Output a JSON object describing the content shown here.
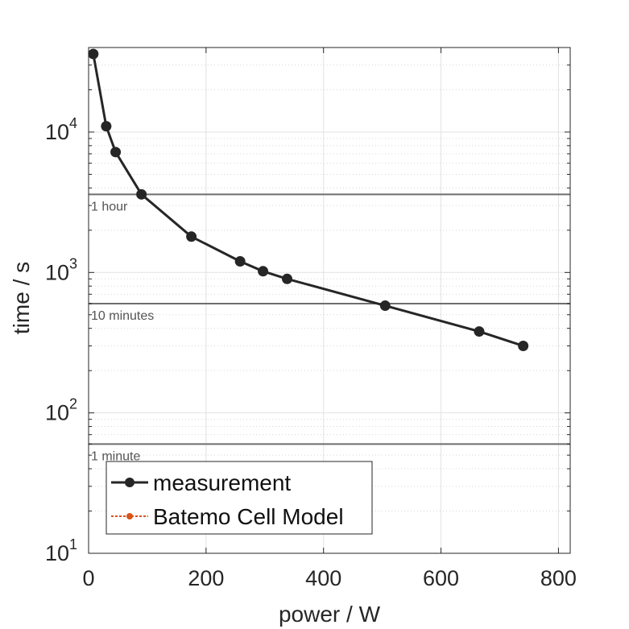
{
  "chart_data": {
    "type": "line",
    "xlabel": "power / W",
    "ylabel": "time / s",
    "xlim": [
      0,
      820
    ],
    "ylim": [
      10,
      40000
    ],
    "y_scale": "log",
    "x_ticks": [
      0,
      200,
      400,
      600,
      800
    ],
    "y_ticks": [
      {
        "value": 10,
        "base": "10",
        "exp": "1"
      },
      {
        "value": 100,
        "base": "10",
        "exp": "2"
      },
      {
        "value": 1000,
        "base": "10",
        "exp": "3"
      },
      {
        "value": 10000,
        "base": "10",
        "exp": "4"
      }
    ],
    "grid": true,
    "legend_position": "bottom-left",
    "series": [
      {
        "name": "measurement",
        "color": "#262626",
        "x": [
          8,
          30,
          46,
          90,
          175,
          258,
          297,
          338,
          505,
          665,
          740
        ],
        "y": [
          36000,
          11000,
          7200,
          3600,
          1800,
          1200,
          1020,
          900,
          580,
          380,
          300
        ]
      },
      {
        "name": "Batemo Cell Model",
        "color": "#d95319",
        "x": [],
        "y": []
      }
    ],
    "reference_lines": [
      {
        "value": 3600,
        "label": "1 hour"
      },
      {
        "value": 600,
        "label": "10 minutes"
      },
      {
        "value": 60,
        "label": "1 minute"
      }
    ]
  }
}
